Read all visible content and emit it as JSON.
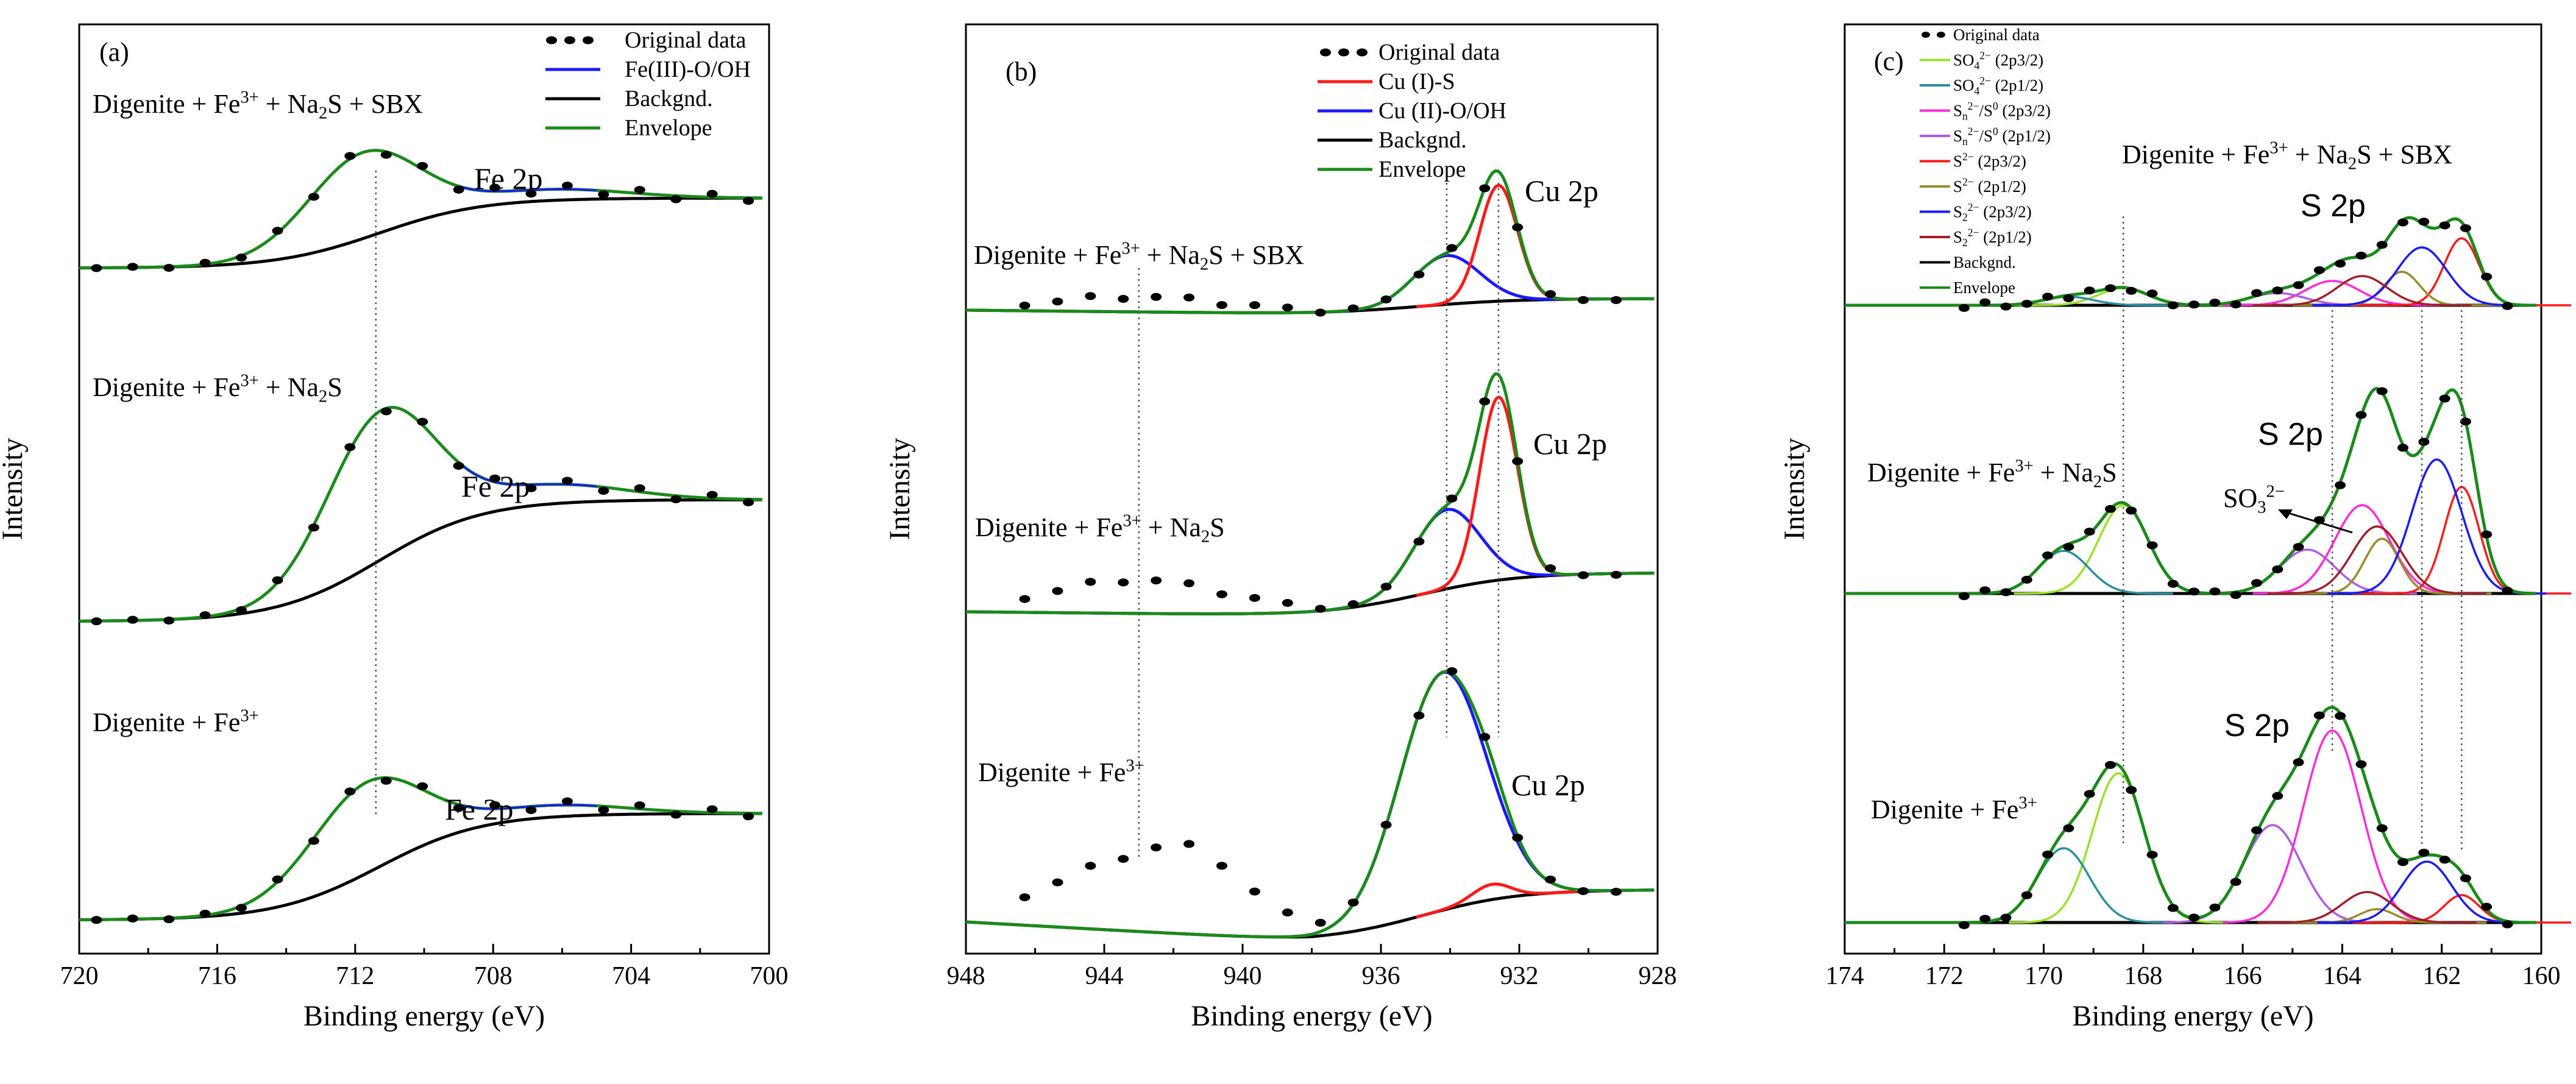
{
  "figure": {
    "panels": [
      {
        "id": "a",
        "label": "(a)",
        "ylabel": "Intensity",
        "xlabel": "Binding energy (eV)"
      },
      {
        "id": "b",
        "label": "(b)",
        "ylabel": "Intensity",
        "xlabel": "Binding energy (eV)"
      },
      {
        "id": "c",
        "label": "(c)",
        "ylabel": "Intensity",
        "xlabel": "Binding energy (eV)"
      }
    ]
  },
  "colors": {
    "original": "#000000",
    "background": "#000000",
    "envelope": "#1a8a1a",
    "blue": "#1a1aff",
    "red": "#ff1a1a",
    "lightgreen": "#9be02a",
    "teal": "#2a8f9f",
    "magenta": "#ff2bd6",
    "violet": "#b05ce0",
    "olive": "#9a8c2a",
    "darkred": "#a0202a"
  },
  "chart_data": [
    {
      "type": "line",
      "panel": "a",
      "title": "",
      "xlabel": "Binding energy (eV)",
      "ylabel": "Intensity",
      "xlim": [
        720,
        700
      ],
      "xticks": [
        "720",
        "716",
        "712",
        "708",
        "704",
        "700"
      ],
      "grid": false,
      "legend_position": "top-right",
      "legend": [
        "Original data",
        "Fe(III)-O/OH",
        "Backgnd.",
        "Envelope"
      ],
      "annotations": {
        "traces": [
          {
            "sample": "Digenite + Fe³⁺ + Na₂S + SBX",
            "peak_label": "Fe 2p"
          },
          {
            "sample": "Digenite + Fe³⁺ + Na₂S",
            "peak_label": "Fe 2p"
          },
          {
            "sample": "Digenite + Fe³⁺",
            "peak_label": "Fe 2p"
          }
        ],
        "dashed_lines": [
          711.4
        ]
      },
      "series": [
        {
          "name": "Original data",
          "x": [
            719.5,
            718,
            716.5,
            715,
            713.5,
            712.5,
            711.8,
            711,
            710,
            709,
            708,
            707,
            706,
            705,
            704,
            703,
            702,
            701
          ],
          "values_by_trace": [
            [
              7.9,
              7.8,
              7.6,
              7.5,
              7.8,
              7.9,
              8.0,
              7.7,
              7.3,
              6.9,
              6.8,
              6.7,
              6.6,
              6.6,
              6.6,
              6.5,
              6.5,
              6.5
            ],
            [
              4.5,
              4.4,
              4.3,
              4.4,
              5.2,
              5.8,
              6.2,
              5.5,
              4.4,
              3.5,
              3.3,
              3.2,
              3.2,
              3.2,
              3.2,
              3.1,
              3.1,
              3.1
            ],
            [
              1.9,
              1.8,
              1.8,
              1.7,
              2.0,
              2.3,
              2.6,
              2.3,
              1.6,
              0.9,
              0.7,
              0.6,
              0.6,
              0.5,
              0.5,
              0.5,
              0.4,
              0.4
            ]
          ]
        },
        {
          "name": "Backgnd.",
          "shape": "step",
          "center": 711.5
        },
        {
          "name": "Envelope",
          "peak_centers": [
            711.8,
            711.3,
            711.7
          ]
        }
      ]
    },
    {
      "type": "line",
      "panel": "b",
      "title": "",
      "xlabel": "Binding energy (eV)",
      "ylabel": "Intensity",
      "xlim": [
        948,
        928
      ],
      "xticks": [
        "948",
        "944",
        "940",
        "936",
        "932",
        "928"
      ],
      "grid": false,
      "legend_position": "top-right",
      "legend": [
        "Original data",
        "Cu (I)-S",
        "Cu (II)-O/OH",
        "Backgnd.",
        "Envelope"
      ],
      "annotations": {
        "traces": [
          {
            "sample": "Digenite + Fe³⁺ + Na₂S + SBX",
            "peak_label": "Cu 2p"
          },
          {
            "sample": "Digenite + Fe³⁺ + Na₂S",
            "peak_label": "Cu 2p"
          },
          {
            "sample": "Digenite + Fe³⁺",
            "peak_label": "Cu 2p"
          }
        ],
        "dashed_lines": [
          943.0,
          934.1,
          932.6
        ]
      },
      "series": [
        {
          "name": "Cu (I)-S",
          "peak_centers": [
            932.6,
            932.6,
            932.8
          ]
        },
        {
          "name": "Cu (II)-O/OH",
          "peak_centers": [
            934.1,
            934.1,
            934.2
          ]
        },
        {
          "name": "Backgnd."
        },
        {
          "name": "Envelope"
        },
        {
          "name": "Original data"
        }
      ]
    },
    {
      "type": "line",
      "panel": "c",
      "title": "",
      "xlabel": "Binding energy (eV)",
      "ylabel": "Intensity",
      "xlim": [
        174,
        160
      ],
      "xticks": [
        "174",
        "172",
        "170",
        "168",
        "166",
        "164",
        "162",
        "160"
      ],
      "grid": false,
      "legend_position": "top-left",
      "legend": [
        "Original data",
        "SO₄²⁻ (2p3/2)",
        "SO₄²⁻ (2p1/2)",
        "Sₙ²⁻/S⁰ (2p3/2)",
        "Sₙ²⁻/S⁰ (2p1/2)",
        "S²⁻ (2p3/2)",
        "S²⁻ (2p1/2)",
        "S₂²⁻ (2p3/2)",
        "S₂²⁻ (2p1/2)",
        "Backgnd.",
        "Envelope"
      ],
      "annotations": {
        "traces": [
          {
            "sample": "Digenite + Fe³⁺ + Na₂S + SBX",
            "peak_label": "S 2p"
          },
          {
            "sample": "Digenite + Fe³⁺ + Na₂S",
            "peak_label": "S 2p",
            "extra_label": "SO₃²⁻"
          },
          {
            "sample": "Digenite + Fe³⁺",
            "peak_label": "S 2p"
          }
        ],
        "dashed_lines": [
          168.4,
          164.2,
          162.4,
          161.6
        ]
      },
      "series": [
        {
          "name": "SO₄²⁻ (2p3/2)",
          "peak_centers": [
            168.4,
            168.4,
            168.5
          ]
        },
        {
          "name": "SO₄²⁻ (2p1/2)",
          "peak_centers": [
            169.5,
            169.6,
            169.6
          ]
        },
        {
          "name": "Sₙ²⁻/S⁰ (2p3/2)",
          "peak_centers": [
            164.2,
            163.6,
            164.2
          ]
        },
        {
          "name": "Sₙ²⁻/S⁰ (2p1/2)",
          "peak_centers": [
            165.3,
            164.7,
            165.4
          ]
        },
        {
          "name": "S²⁻ (2p3/2)",
          "peak_centers": [
            161.6,
            161.6,
            161.6
          ]
        },
        {
          "name": "S²⁻ (2p1/2)",
          "peak_centers": [
            162.8,
            163.2,
            163.3
          ]
        },
        {
          "name": "S₂²⁻ (2p3/2)",
          "peak_centers": [
            162.4,
            162.1,
            162.3
          ]
        },
        {
          "name": "S₂²⁻ (2p1/2)",
          "peak_centers": [
            163.6,
            163.3,
            163.5
          ]
        },
        {
          "name": "Backgnd."
        },
        {
          "name": "Envelope"
        },
        {
          "name": "Original data"
        }
      ]
    }
  ]
}
